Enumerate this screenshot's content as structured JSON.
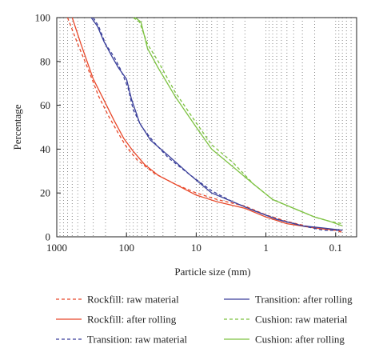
{
  "chart_data": {
    "type": "line",
    "title": "",
    "xlabel": "Particle size (mm)",
    "ylabel": "Percentage",
    "x_scale": "log",
    "x_reversed": true,
    "xlim": [
      1000,
      0.05
    ],
    "ylim": [
      0,
      100
    ],
    "x_ticks": [
      1000,
      100,
      10,
      1,
      0.1
    ],
    "x_tick_labels": [
      "1000",
      "100",
      "10",
      "1",
      "0.1"
    ],
    "y_ticks": [
      0,
      20,
      40,
      60,
      80,
      100
    ],
    "y_tick_labels": [
      "0",
      "20",
      "40",
      "60",
      "80",
      "100"
    ],
    "grid": "dotted vertical lines at minor log ticks",
    "legend_position": "bottom",
    "series": [
      {
        "name": "Rockfill: raw material",
        "color": "#e8482a",
        "dash": "dashed",
        "points": [
          [
            700,
            100
          ],
          [
            500,
            88
          ],
          [
            350,
            76
          ],
          [
            250,
            64
          ],
          [
            180,
            55
          ],
          [
            130,
            47
          ],
          [
            100,
            41
          ],
          [
            70,
            35
          ],
          [
            40,
            29
          ],
          [
            20,
            24
          ],
          [
            10,
            20
          ],
          [
            5,
            17
          ],
          [
            2,
            14
          ],
          [
            1,
            10
          ],
          [
            0.5,
            7
          ],
          [
            0.2,
            4
          ],
          [
            0.1,
            3
          ],
          [
            0.08,
            2
          ]
        ]
      },
      {
        "name": "Rockfill: after rolling",
        "color": "#e8482a",
        "dash": "solid",
        "points": [
          [
            600,
            100
          ],
          [
            450,
            88
          ],
          [
            300,
            72
          ],
          [
            200,
            61
          ],
          [
            150,
            53
          ],
          [
            110,
            45
          ],
          [
            80,
            39
          ],
          [
            55,
            33
          ],
          [
            35,
            28
          ],
          [
            20,
            24
          ],
          [
            10,
            19
          ],
          [
            5,
            16
          ],
          [
            2,
            13
          ],
          [
            1,
            9
          ],
          [
            0.5,
            6
          ],
          [
            0.2,
            4
          ],
          [
            0.1,
            3
          ],
          [
            0.08,
            3
          ]
        ]
      },
      {
        "name": "Transition: raw material",
        "color": "#3a3f9a",
        "dash": "dashed",
        "points": [
          [
            300,
            100
          ],
          [
            250,
            96
          ],
          [
            200,
            88
          ],
          [
            150,
            82
          ],
          [
            120,
            76
          ],
          [
            95,
            68
          ],
          [
            80,
            58
          ],
          [
            60,
            50
          ],
          [
            40,
            43
          ],
          [
            25,
            36
          ],
          [
            12,
            28
          ],
          [
            6,
            21
          ],
          [
            3,
            16
          ],
          [
            1.5,
            12
          ],
          [
            0.7,
            8
          ],
          [
            0.3,
            5
          ],
          [
            0.15,
            3
          ],
          [
            0.08,
            3
          ]
        ]
      },
      {
        "name": "Transition: after rolling",
        "color": "#3a3f9a",
        "dash": "solid",
        "points": [
          [
            320,
            100
          ],
          [
            260,
            96
          ],
          [
            210,
            89
          ],
          [
            160,
            82
          ],
          [
            130,
            77
          ],
          [
            100,
            72
          ],
          [
            85,
            63
          ],
          [
            65,
            52
          ],
          [
            45,
            44
          ],
          [
            25,
            37
          ],
          [
            12,
            28
          ],
          [
            6,
            20
          ],
          [
            3,
            16
          ],
          [
            1.5,
            12
          ],
          [
            0.7,
            8
          ],
          [
            0.3,
            5
          ],
          [
            0.15,
            4
          ],
          [
            0.08,
            3
          ]
        ]
      },
      {
        "name": "Cushion: raw material",
        "color": "#7dc242",
        "dash": "dashed",
        "points": [
          [
            80,
            100
          ],
          [
            65,
            98
          ],
          [
            50,
            88
          ],
          [
            35,
            80
          ],
          [
            20,
            66
          ],
          [
            10,
            52
          ],
          [
            6,
            42
          ],
          [
            3,
            34
          ],
          [
            1.5,
            24
          ],
          [
            0.8,
            17
          ],
          [
            0.4,
            13
          ],
          [
            0.2,
            9
          ],
          [
            0.12,
            7
          ],
          [
            0.08,
            6
          ]
        ]
      },
      {
        "name": "Cushion: after rolling",
        "color": "#7dc242",
        "dash": "solid",
        "points": [
          [
            75,
            100
          ],
          [
            62,
            98
          ],
          [
            50,
            86
          ],
          [
            35,
            77
          ],
          [
            20,
            64
          ],
          [
            10,
            50
          ],
          [
            6,
            40
          ],
          [
            3,
            32
          ],
          [
            1.5,
            24
          ],
          [
            0.8,
            17
          ],
          [
            0.4,
            13
          ],
          [
            0.2,
            9
          ],
          [
            0.12,
            7
          ],
          [
            0.08,
            5
          ]
        ]
      }
    ]
  }
}
